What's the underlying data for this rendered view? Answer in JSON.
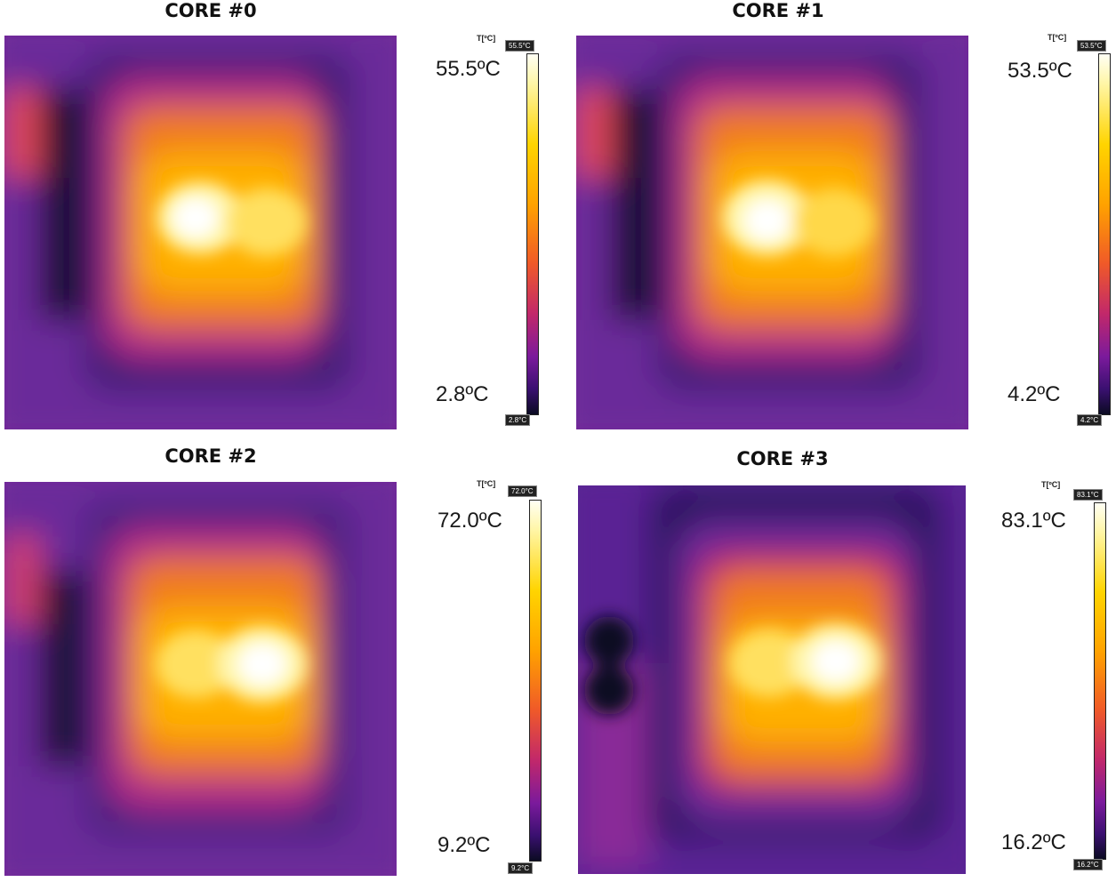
{
  "panels": [
    {
      "title": "CORE #0",
      "unit": "T[ºC]",
      "max_label": "55.5ºC",
      "min_label": "2.8ºC",
      "max_tag": "55.5°C",
      "min_tag": "2.8°C"
    },
    {
      "title": "CORE #1",
      "unit": "T[ºC]",
      "max_label": "53.5ºC",
      "min_label": "4.2ºC",
      "max_tag": "53.5°C",
      "min_tag": "4.2°C"
    },
    {
      "title": "CORE #2",
      "unit": "T[ºC]",
      "max_label": "72.0ºC",
      "min_label": "9.2ºC",
      "max_tag": "72.0°C",
      "min_tag": "9.2°C"
    },
    {
      "title": "CORE #3",
      "unit": "T[ºC]",
      "max_label": "83.1ºC",
      "min_label": "16.2ºC",
      "max_tag": "83.1°C",
      "min_tag": "16.2°C"
    }
  ],
  "colors": {
    "hot": "#ffffff",
    "warm": "#ffd400",
    "mid": "#f07a1c",
    "cool": "#c2286a",
    "cold": "#3a1a6e",
    "coldest": "#0b0b22"
  }
}
